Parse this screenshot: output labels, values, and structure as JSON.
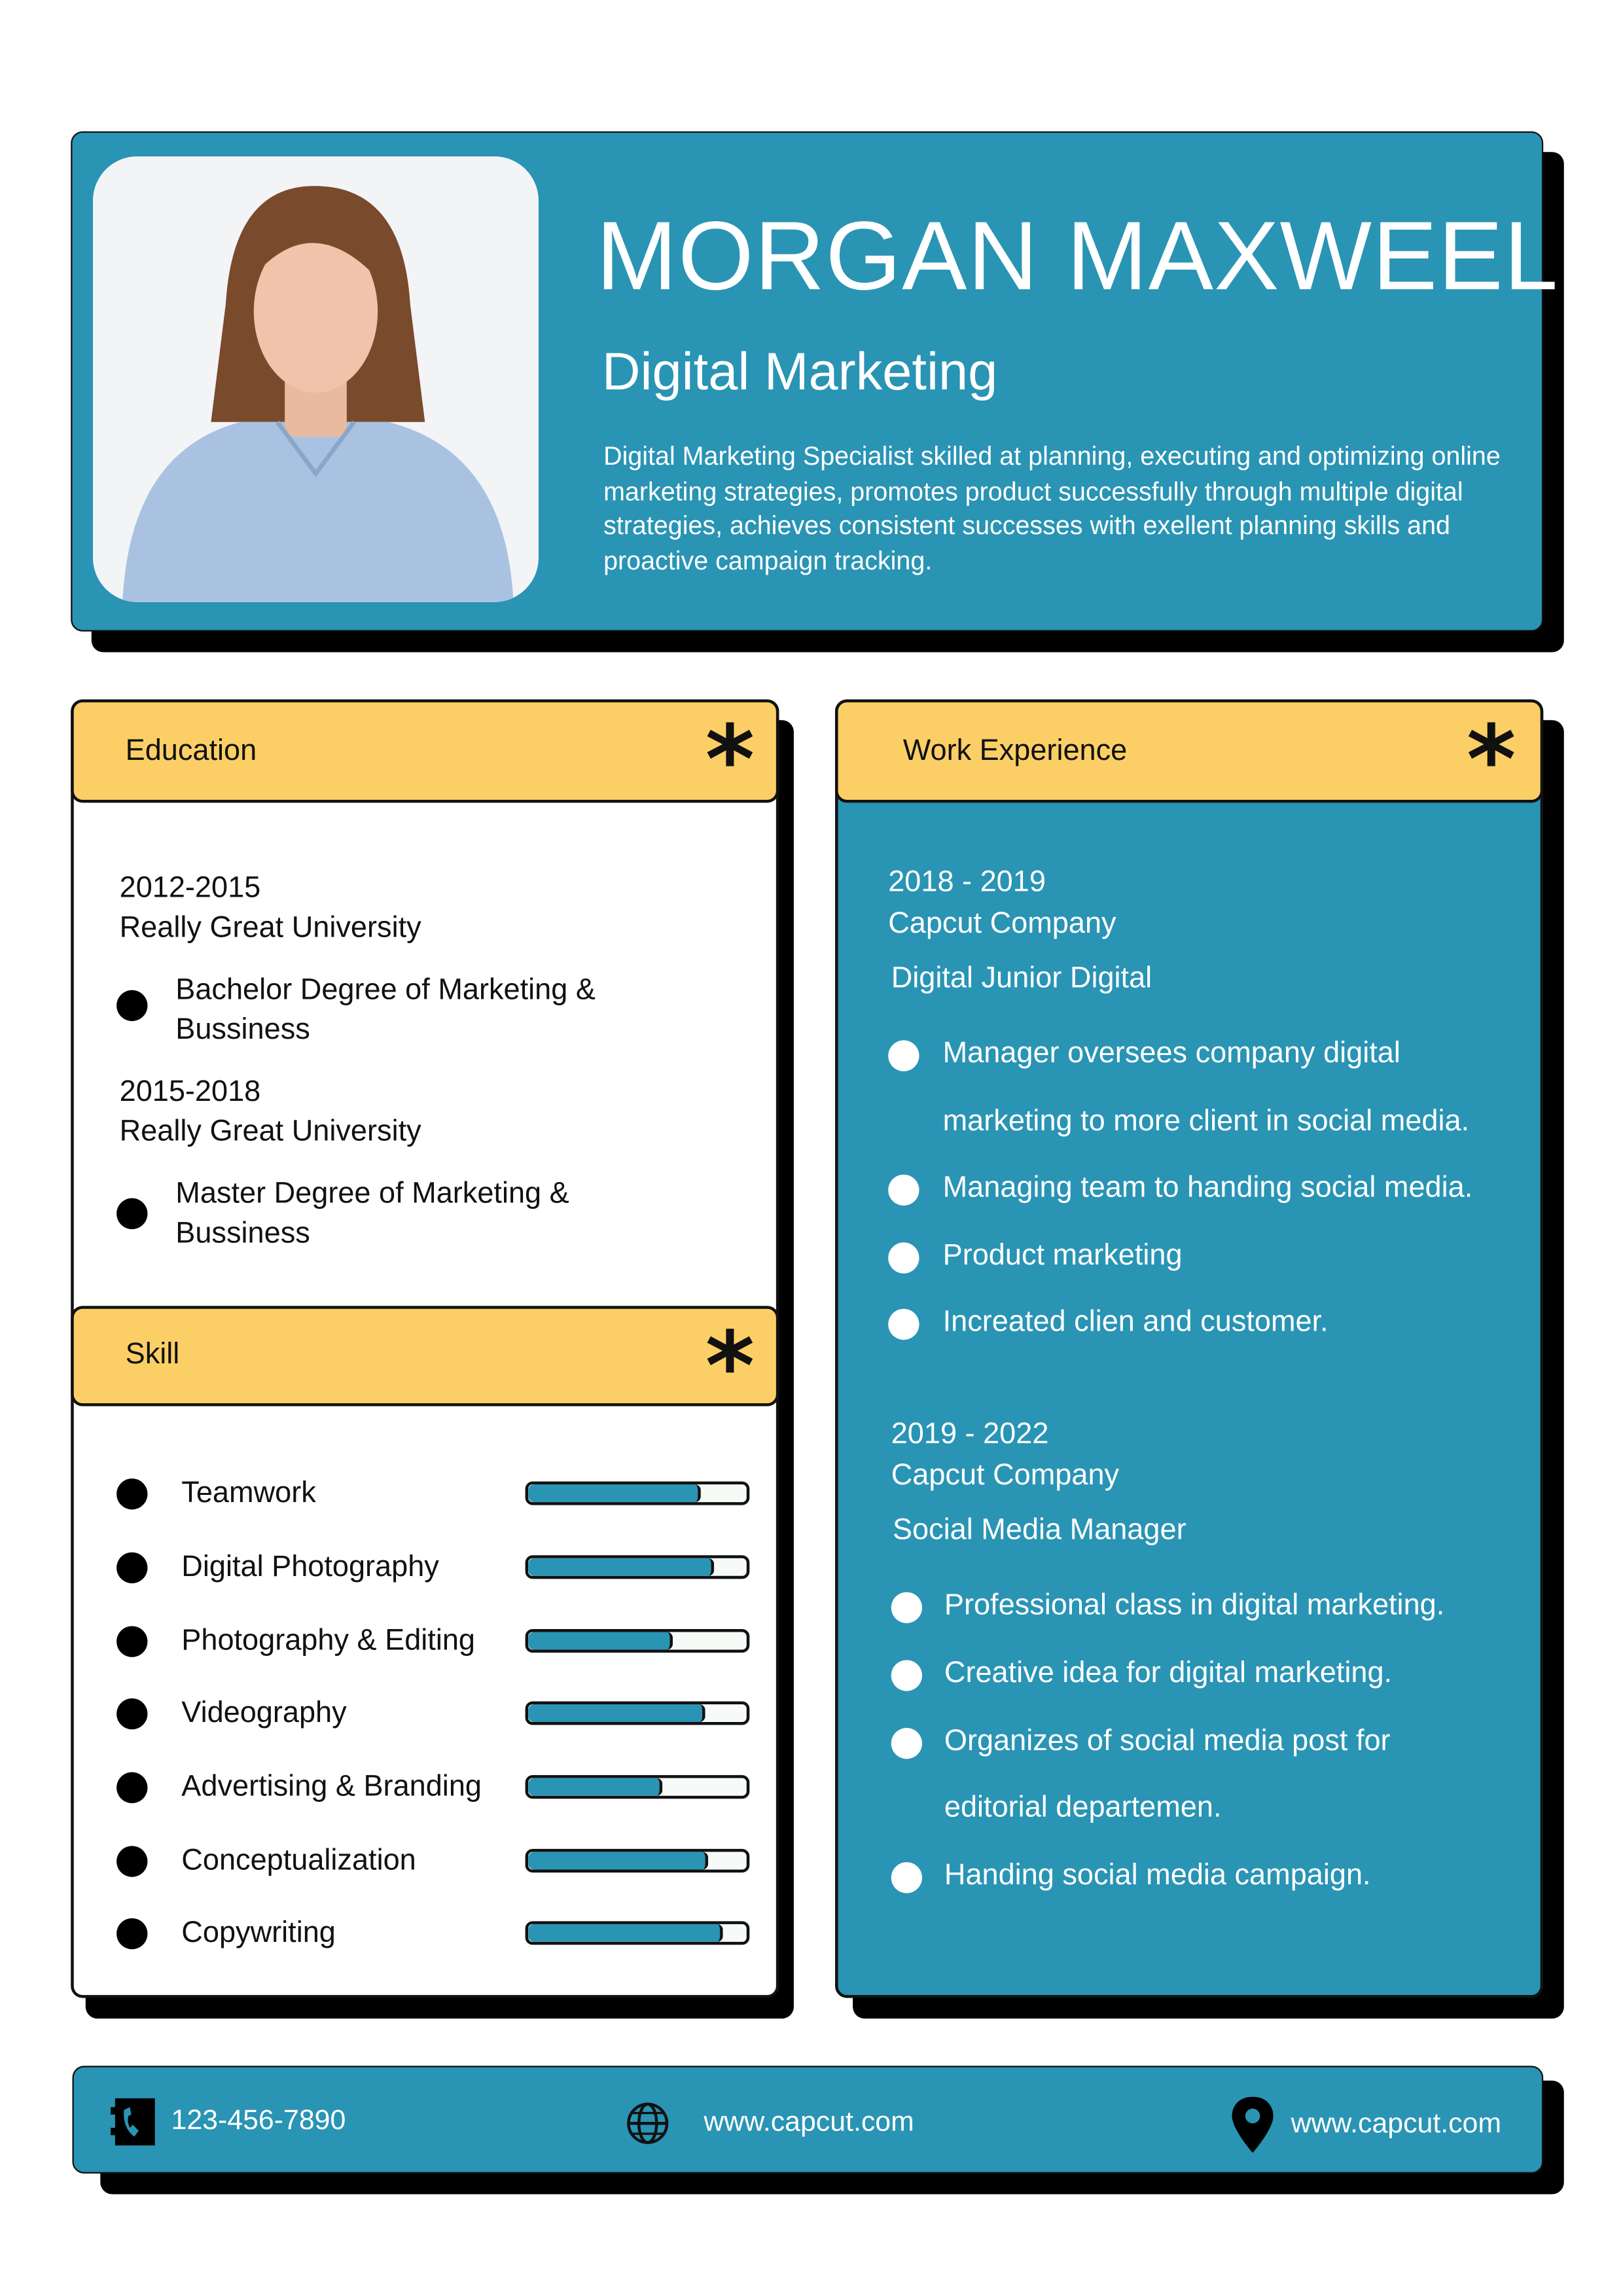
{
  "header": {
    "name": "MORGAN MAXWEEL",
    "title": "Digital Marketing",
    "summary": "Digital Marketing Specialist skilled at planning, executing and optimizing online marketing strategies, promotes product successfully through multiple digital strategies, achieves consistent successes with exellent planning skills and proactive campaign tracking."
  },
  "colors": {
    "primary": "#2994b4",
    "accent": "#fbcf66",
    "shadow": "#000000"
  },
  "education": {
    "heading": "Education",
    "entries": [
      {
        "years": "2012-2015",
        "school": "Really Great University",
        "degree_line1": "Bachelor Degree of Marketing &",
        "degree_line2": "Bussiness"
      },
      {
        "years": "2015-2018",
        "school": "Really Great University",
        "degree_line1": "Master Degree of Marketing &",
        "degree_line2": "Bussiness"
      }
    ]
  },
  "skills": {
    "heading": "Skill",
    "items": [
      {
        "label": "Teamwork",
        "level": 0.78
      },
      {
        "label": "Digital Photography",
        "level": 0.84
      },
      {
        "label": "Photography & Editing",
        "level": 0.65
      },
      {
        "label": "Videography",
        "level": 0.8
      },
      {
        "label": "Advertising & Branding",
        "level": 0.6
      },
      {
        "label": "Conceptualization",
        "level": 0.81
      },
      {
        "label": "Copywriting",
        "level": 0.875
      }
    ]
  },
  "work": {
    "heading": "Work Experience",
    "jobs": [
      {
        "years": "2018 - 2019",
        "company": "Capcut Company",
        "role": "Digital Junior Digital",
        "bullets": [
          "Manager oversees company digital",
          "marketing to more client in social media.",
          "Managing team to handing social media.",
          "Product marketing",
          "Increated clien and customer."
        ]
      },
      {
        "years": "2019 - 2022",
        "company": "Capcut Company",
        "role": "Social Media Manager",
        "bullets": [
          "Professional class in digital marketing.",
          "Creative idea for digital marketing.",
          "Organizes of social media post for",
          "editorial departemen.",
          "Handing social media campaign."
        ]
      }
    ]
  },
  "footer": {
    "phone": "123-456-7890",
    "website": "www.capcut.com",
    "location": "www.capcut.com",
    "icons": [
      "phone-book-icon",
      "globe-icon",
      "map-pin-icon"
    ]
  }
}
